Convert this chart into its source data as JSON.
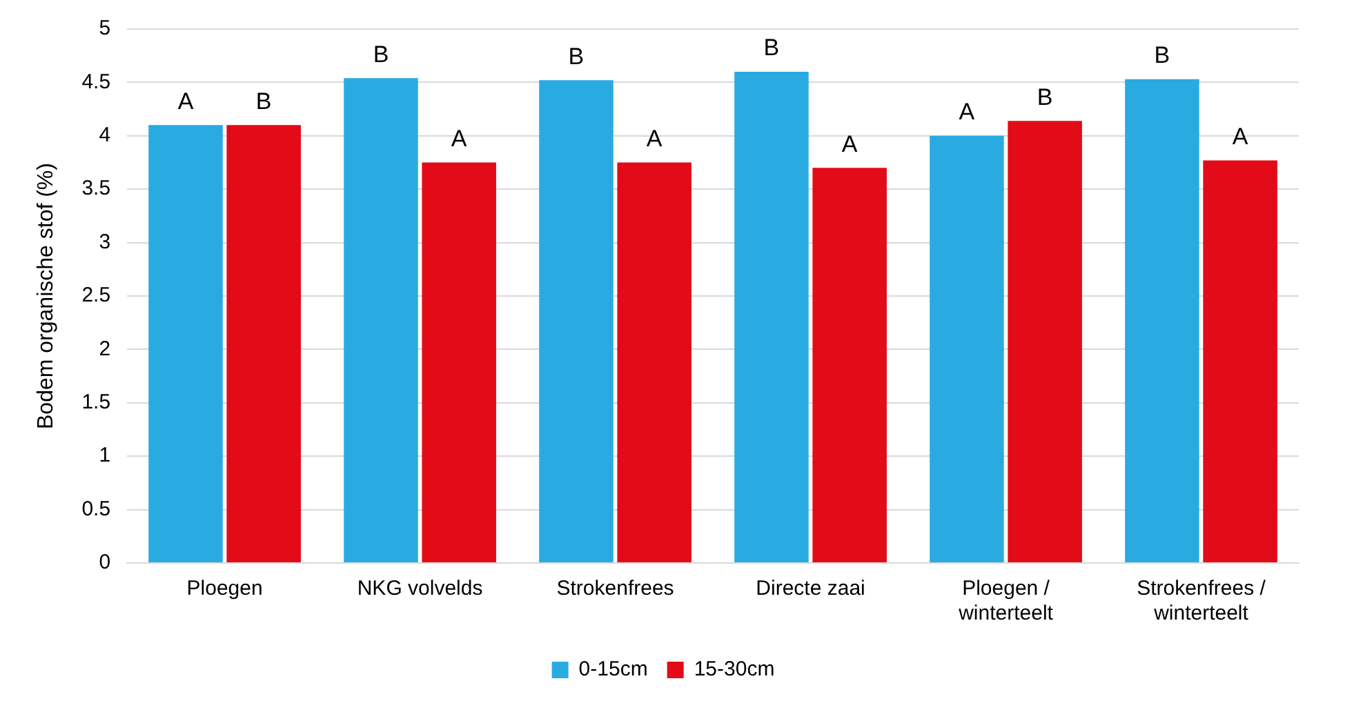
{
  "chart_data": {
    "type": "bar",
    "ylabel": "Bodem organische stof (%)",
    "categories": [
      "Ploegen",
      "NKG volvelds",
      "Strokenfrees",
      "Directe zaai",
      "Ploegen / winterteelt",
      "Strokenfrees / winterteelt"
    ],
    "series": [
      {
        "name": "0-15cm",
        "color": "#29abe2",
        "values": [
          4.1,
          4.54,
          4.52,
          4.6,
          4.0,
          4.53
        ]
      },
      {
        "name": "15-30cm",
        "color": "#e30b17",
        "values": [
          4.1,
          3.75,
          3.75,
          3.7,
          4.14,
          3.77
        ]
      }
    ],
    "ylim": [
      0,
      5
    ],
    "yticks": [
      0,
      0.5,
      1,
      1.5,
      2,
      2.5,
      3,
      3.5,
      4,
      4.5,
      5
    ],
    "grid": "y",
    "legend": "bottom",
    "annotations": [
      {
        "text": "A",
        "x": "Ploegen",
        "y": 4.1
      },
      {
        "text": "B",
        "x": "Ploegen",
        "y": 4.1
      },
      {
        "text": "B",
        "x": "NKG volvelds",
        "y": 4.54
      },
      {
        "text": "A",
        "x": "NKG volvelds",
        "y": 3.75
      },
      {
        "text": "B",
        "x": "Strokenfrees",
        "y": 4.52
      },
      {
        "text": "A",
        "x": "Strokenfrees",
        "y": 3.75
      },
      {
        "text": "B",
        "x": "Directe zaai",
        "y": 4.6
      },
      {
        "text": "A",
        "x": "Directe zaai",
        "y": 3.7
      },
      {
        "text": "A",
        "x": "Ploegen / winterteelt",
        "y": 4.0
      },
      {
        "text": "B",
        "x": "Ploegen / winterteelt",
        "y": 4.14
      },
      {
        "text": "B",
        "x": "Strokenfrees / winterteelt",
        "y": 4.53
      },
      {
        "text": "A",
        "x": "Strokenfrees / winterteelt",
        "y": 3.77
      }
    ]
  }
}
